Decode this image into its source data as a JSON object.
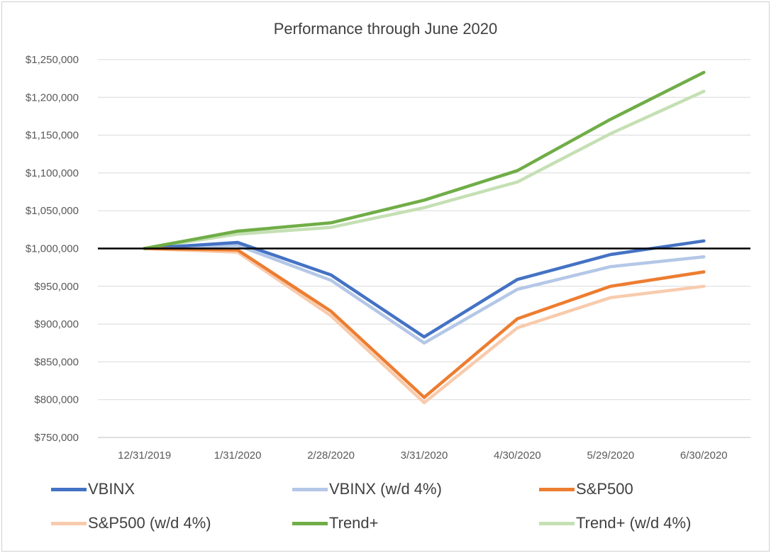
{
  "chart_data": {
    "type": "line",
    "title": "Performance through June 2020",
    "xlabel": "",
    "ylabel": "",
    "categories": [
      "12/31/2019",
      "1/31/2020",
      "2/28/2020",
      "3/31/2020",
      "4/30/2020",
      "5/29/2020",
      "6/30/2020"
    ],
    "ylim": [
      750000,
      1250000
    ],
    "yticks": [
      750000,
      800000,
      850000,
      900000,
      950000,
      1000000,
      1050000,
      1100000,
      1150000,
      1200000,
      1250000
    ],
    "ytick_labels": [
      "$750,000",
      "$800,000",
      "$850,000",
      "$900,000",
      "$950,000",
      "$1,000,000",
      "$1,050,000",
      "$1,100,000",
      "$1,150,000",
      "$1,200,000",
      "$1,250,000"
    ],
    "reference_line": 1000000,
    "grid": true,
    "legend_position": "bottom",
    "series": [
      {
        "name": "VBINX",
        "color": "#4472C4",
        "values": [
          1000000,
          1008000,
          965000,
          883000,
          959000,
          992000,
          1010000
        ]
      },
      {
        "name": "VBINX (w/d 4%)",
        "color": "#B4C7E7",
        "values": [
          1000000,
          1004000,
          958000,
          875000,
          946000,
          976000,
          989000
        ]
      },
      {
        "name": "S&P500",
        "color": "#ED7D31",
        "values": [
          1000000,
          998000,
          917000,
          803000,
          907000,
          950000,
          969000
        ]
      },
      {
        "name": "S&P500 (w/d 4%)",
        "color": "#F8CBAD",
        "values": [
          1000000,
          995000,
          911000,
          796000,
          895000,
          935000,
          950000
        ]
      },
      {
        "name": "Trend+",
        "color": "#70AD47",
        "values": [
          1000000,
          1023000,
          1034000,
          1064000,
          1103000,
          1171000,
          1233000
        ]
      },
      {
        "name": "Trend+ (w/d 4%)",
        "color": "#C5E0B4",
        "values": [
          1000000,
          1019000,
          1028000,
          1054000,
          1088000,
          1152000,
          1208000
        ]
      }
    ]
  }
}
